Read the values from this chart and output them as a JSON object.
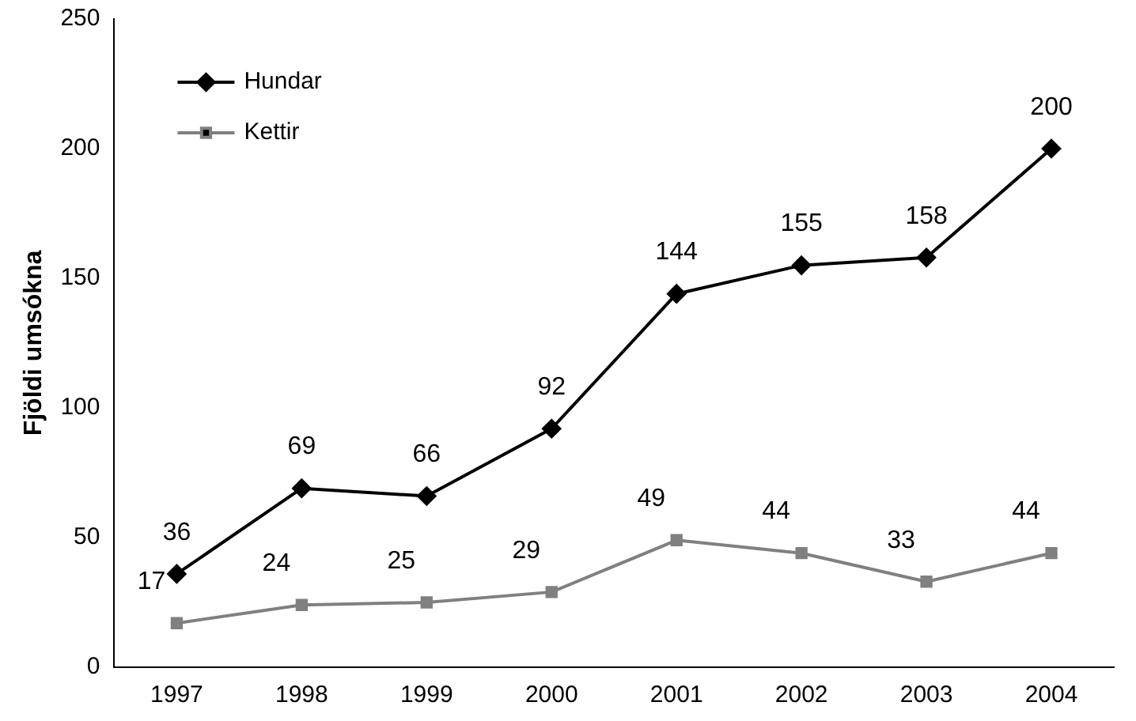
{
  "chart_data": {
    "type": "line",
    "ylabel": "Fjöldi umsókna",
    "categories": [
      "1997",
      "1998",
      "1999",
      "2000",
      "2001",
      "2002",
      "2003",
      "2004"
    ],
    "series": [
      {
        "name": "Hundar",
        "color": "#000000",
        "marker": "diamond",
        "values": [
          36,
          69,
          66,
          92,
          144,
          155,
          158,
          200
        ]
      },
      {
        "name": "Kettir",
        "color": "#808080",
        "marker": "square",
        "values": [
          17,
          24,
          25,
          29,
          49,
          44,
          33,
          44
        ]
      }
    ],
    "ylim": [
      0,
      250
    ],
    "yticks": [
      0,
      50,
      100,
      150,
      200,
      250
    ],
    "grid": false,
    "legend": "top left",
    "data_labels": true
  }
}
